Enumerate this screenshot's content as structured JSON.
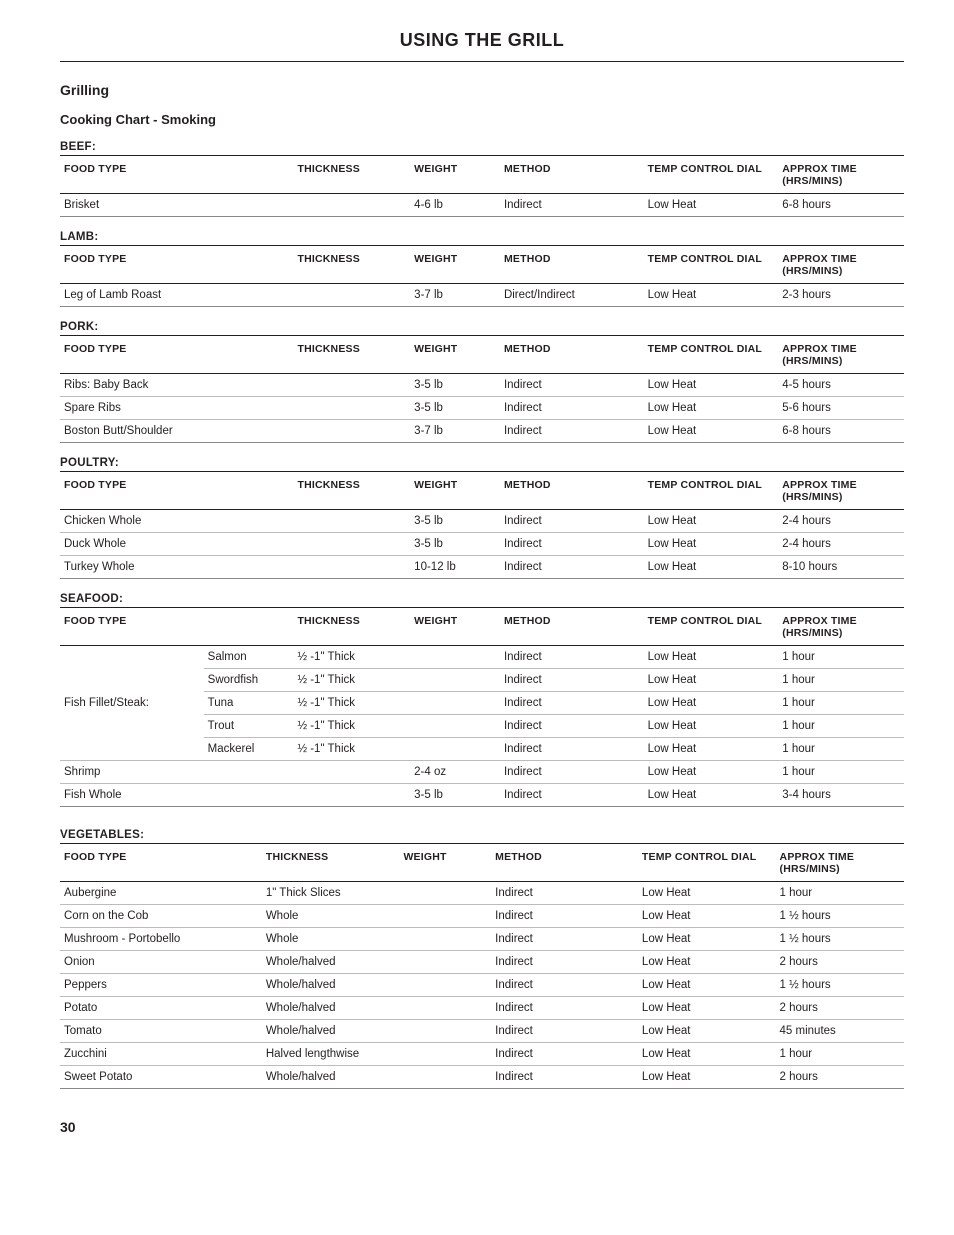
{
  "page": {
    "title": "USING THE GRILL",
    "section": "Grilling",
    "subsection": "Cooking Chart - Smoking",
    "number": "30"
  },
  "headers": {
    "food": "FOOD TYPE",
    "thickness": "THICKNESS",
    "weight": "WEIGHT",
    "method": "METHOD",
    "temp": "TEMP CONTROL DIAL",
    "time": "APPROX TIME (HRS/MINS)"
  },
  "categories": {
    "beef": {
      "label": "BEEF:",
      "rows": [
        {
          "food": "Brisket",
          "thick": "",
          "wt": "4-6 lb",
          "meth": "Indirect",
          "temp": "Low Heat",
          "time": "6-8 hours"
        }
      ]
    },
    "lamb": {
      "label": "LAMB:",
      "rows": [
        {
          "food": "Leg of Lamb Roast",
          "thick": "",
          "wt": "3-7 lb",
          "meth": "Direct/Indirect",
          "temp": "Low Heat",
          "time": "2-3 hours"
        }
      ]
    },
    "pork": {
      "label": "PORK:",
      "rows": [
        {
          "food": "Ribs: Baby Back",
          "thick": "",
          "wt": "3-5 lb",
          "meth": "Indirect",
          "temp": "Low Heat",
          "time": "4-5 hours"
        },
        {
          "food": "Spare Ribs",
          "thick": "",
          "wt": "3-5 lb",
          "meth": "Indirect",
          "temp": "Low Heat",
          "time": "5-6 hours"
        },
        {
          "food": "Boston Butt/Shoulder",
          "thick": "",
          "wt": "3-7 lb",
          "meth": "Indirect",
          "temp": "Low Heat",
          "time": "6-8 hours"
        }
      ]
    },
    "poultry": {
      "label": "POULTRY:",
      "rows": [
        {
          "food": "Chicken Whole",
          "thick": "",
          "wt": "3-5 lb",
          "meth": "Indirect",
          "temp": "Low Heat",
          "time": "2-4 hours"
        },
        {
          "food": "Duck Whole",
          "thick": "",
          "wt": "3-5 lb",
          "meth": "Indirect",
          "temp": "Low Heat",
          "time": "2-4 hours"
        },
        {
          "food": "Turkey Whole",
          "thick": "",
          "wt": "10-12 lb",
          "meth": "Indirect",
          "temp": "Low Heat",
          "time": "8-10 hours"
        }
      ]
    },
    "seafood": {
      "label": "SEAFOOD:",
      "group_label": "Fish Fillet/Steak:",
      "sub": [
        {
          "name": "Salmon",
          "thick": "½ -1\" Thick",
          "wt": "",
          "meth": "Indirect",
          "temp": "Low Heat",
          "time": "1 hour"
        },
        {
          "name": "Swordfish",
          "thick": "½ -1\" Thick",
          "wt": "",
          "meth": "Indirect",
          "temp": "Low Heat",
          "time": "1 hour"
        },
        {
          "name": "Tuna",
          "thick": "½ -1\" Thick",
          "wt": "",
          "meth": "Indirect",
          "temp": "Low Heat",
          "time": "1 hour"
        },
        {
          "name": "Trout",
          "thick": "½ -1\" Thick",
          "wt": "",
          "meth": "Indirect",
          "temp": "Low Heat",
          "time": "1 hour"
        },
        {
          "name": "Mackerel",
          "thick": "½ -1\" Thick",
          "wt": "",
          "meth": "Indirect",
          "temp": "Low Heat",
          "time": "1 hour"
        }
      ],
      "rows": [
        {
          "food": "Shrimp",
          "thick": "",
          "wt": "2-4 oz",
          "meth": "Indirect",
          "temp": "Low Heat",
          "time": "1 hour"
        },
        {
          "food": "Fish Whole",
          "thick": "",
          "wt": "3-5 lb",
          "meth": "Indirect",
          "temp": "Low Heat",
          "time": "3-4 hours"
        }
      ]
    },
    "vegetables": {
      "label": "VEGETABLES:",
      "rows": [
        {
          "food": "Aubergine",
          "thick": "1\" Thick Slices",
          "wt": "",
          "meth": "Indirect",
          "temp": "Low Heat",
          "time": "1 hour"
        },
        {
          "food": "Corn on the Cob",
          "thick": "Whole",
          "wt": "",
          "meth": "Indirect",
          "temp": "Low Heat",
          "time": "1 ½ hours"
        },
        {
          "food": "Mushroom - Portobello",
          "thick": "Whole",
          "wt": "",
          "meth": "Indirect",
          "temp": "Low Heat",
          "time": "1 ½ hours"
        },
        {
          "food": "Onion",
          "thick": "Whole/halved",
          "wt": "",
          "meth": "Indirect",
          "temp": "Low Heat",
          "time": "2 hours"
        },
        {
          "food": "Peppers",
          "thick": "Whole/halved",
          "wt": "",
          "meth": "Indirect",
          "temp": "Low Heat",
          "time": "1 ½ hours"
        },
        {
          "food": "Potato",
          "thick": "Whole/halved",
          "wt": "",
          "meth": "Indirect",
          "temp": "Low Heat",
          "time": "2 hours"
        },
        {
          "food": "Tomato",
          "thick": "Whole/halved",
          "wt": "",
          "meth": "Indirect",
          "temp": "Low Heat",
          "time": "45 minutes"
        },
        {
          "food": "Zucchini",
          "thick": "Halved lengthwise",
          "wt": "",
          "meth": "Indirect",
          "temp": "Low Heat",
          "time": "1 hour"
        },
        {
          "food": "Sweet Potato",
          "thick": "Whole/halved",
          "wt": "",
          "meth": "Indirect",
          "temp": "Low Heat",
          "time": "2 hours"
        }
      ]
    }
  }
}
